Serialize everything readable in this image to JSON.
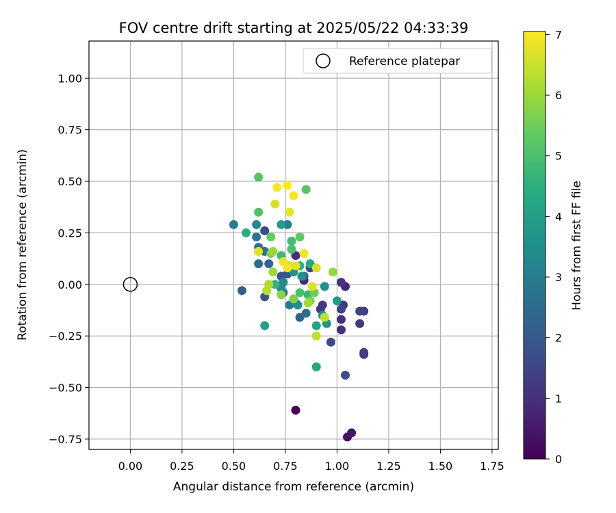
{
  "chart_data": {
    "type": "scatter",
    "title": "FOV centre drift starting at 2025/05/22 04:33:39",
    "xlabel": "Angular distance from reference (arcmin)",
    "ylabel": "Rotation from reference (arcmin)",
    "xlim": [
      -0.2,
      1.78
    ],
    "ylim": [
      -0.8,
      1.18
    ],
    "xticks": [
      "0.00",
      "0.25",
      "0.50",
      "0.75",
      "1.00",
      "1.25",
      "1.50",
      "1.75"
    ],
    "yticks": [
      "−0.75",
      "−0.50",
      "−0.25",
      "0.00",
      "0.25",
      "0.50",
      "0.75",
      "1.00"
    ],
    "xtick_values": [
      0,
      0.25,
      0.5,
      0.75,
      1.0,
      1.25,
      1.5,
      1.75
    ],
    "ytick_values": [
      -0.75,
      -0.5,
      -0.25,
      0,
      0.25,
      0.5,
      0.75,
      1.0
    ],
    "grid": true,
    "legend": {
      "placement": "top-right",
      "entries": [
        "Reference platepar"
      ]
    },
    "reference_point": {
      "x": 0.0,
      "y": 0.0
    },
    "colorbar": {
      "label": "Hours from first FF file",
      "ticks": [
        "0",
        "1",
        "2",
        "3",
        "4",
        "5",
        "6",
        "7"
      ],
      "tick_values": [
        0,
        1,
        2,
        3,
        4,
        5,
        6,
        7
      ],
      "range": [
        0,
        7.05
      ],
      "colormap": "viridis"
    },
    "points": [
      {
        "x": 0.8,
        "y": -0.61,
        "h": 0.0
      },
      {
        "x": 1.05,
        "y": -0.74,
        "h": 0.3
      },
      {
        "x": 1.07,
        "y": -0.72,
        "h": 0.4
      },
      {
        "x": 1.04,
        "y": -0.01,
        "h": 0.8
      },
      {
        "x": 0.84,
        "y": 0.02,
        "h": 0.8
      },
      {
        "x": 0.8,
        "y": 0.14,
        "h": 0.9
      },
      {
        "x": 1.02,
        "y": -0.17,
        "h": 1.0
      },
      {
        "x": 1.02,
        "y": -0.22,
        "h": 1.0
      },
      {
        "x": 1.03,
        "y": -0.1,
        "h": 1.1
      },
      {
        "x": 1.02,
        "y": 0.01,
        "h": 1.1
      },
      {
        "x": 0.92,
        "y": -0.12,
        "h": 1.2
      },
      {
        "x": 0.93,
        "y": -0.1,
        "h": 1.2
      },
      {
        "x": 1.11,
        "y": -0.19,
        "h": 1.2
      },
      {
        "x": 1.13,
        "y": -0.34,
        "h": 1.3
      },
      {
        "x": 1.13,
        "y": -0.33,
        "h": 1.3
      },
      {
        "x": 1.13,
        "y": -0.13,
        "h": 1.3
      },
      {
        "x": 1.11,
        "y": -0.13,
        "h": 1.4
      },
      {
        "x": 1.02,
        "y": -0.12,
        "h": 1.4
      },
      {
        "x": 0.97,
        "y": -0.28,
        "h": 1.5
      },
      {
        "x": 0.87,
        "y": 0.08,
        "h": 1.5
      },
      {
        "x": 0.65,
        "y": 0.26,
        "h": 1.6
      },
      {
        "x": 1.04,
        "y": -0.44,
        "h": 1.7
      },
      {
        "x": 0.73,
        "y": 0.04,
        "h": 1.8
      },
      {
        "x": 0.65,
        "y": -0.06,
        "h": 1.9
      },
      {
        "x": 0.76,
        "y": 0.05,
        "h": 1.9
      },
      {
        "x": 0.54,
        "y": -0.03,
        "h": 2.1
      },
      {
        "x": 0.84,
        "y": 0.04,
        "h": 2.1
      },
      {
        "x": 0.82,
        "y": -0.16,
        "h": 2.2
      },
      {
        "x": 0.67,
        "y": 0.1,
        "h": 2.3
      },
      {
        "x": 0.74,
        "y": -0.04,
        "h": 2.4
      },
      {
        "x": 0.85,
        "y": -0.14,
        "h": 2.5
      },
      {
        "x": 0.62,
        "y": 0.1,
        "h": 2.5
      },
      {
        "x": 0.65,
        "y": 0.16,
        "h": 2.6
      },
      {
        "x": 0.62,
        "y": 0.18,
        "h": 2.7
      },
      {
        "x": 0.61,
        "y": 0.23,
        "h": 2.8
      },
      {
        "x": 0.77,
        "y": -0.1,
        "h": 2.9
      },
      {
        "x": 0.5,
        "y": 0.29,
        "h": 3.0
      },
      {
        "x": 0.76,
        "y": 0.29,
        "h": 3.1
      },
      {
        "x": 0.74,
        "y": 0.01,
        "h": 3.3
      },
      {
        "x": 0.61,
        "y": 0.29,
        "h": 3.3
      },
      {
        "x": 0.73,
        "y": -0.02,
        "h": 3.4
      },
      {
        "x": 0.81,
        "y": -0.1,
        "h": 3.4
      },
      {
        "x": 0.8,
        "y": -0.09,
        "h": 3.5
      },
      {
        "x": 0.94,
        "y": -0.01,
        "h": 3.5
      },
      {
        "x": 0.83,
        "y": 0.04,
        "h": 3.6
      },
      {
        "x": 0.79,
        "y": 0.06,
        "h": 3.6
      },
      {
        "x": 0.95,
        "y": -0.19,
        "h": 3.7
      },
      {
        "x": 0.93,
        "y": -0.15,
        "h": 3.7
      },
      {
        "x": 1.0,
        "y": -0.08,
        "h": 3.8
      },
      {
        "x": 0.73,
        "y": 0.29,
        "h": 3.9
      },
      {
        "x": 0.65,
        "y": -0.2,
        "h": 4.0
      },
      {
        "x": 0.9,
        "y": -0.2,
        "h": 4.1
      },
      {
        "x": 0.9,
        "y": -0.4,
        "h": 4.2
      },
      {
        "x": 0.87,
        "y": 0.1,
        "h": 4.3
      },
      {
        "x": 0.56,
        "y": 0.25,
        "h": 4.4
      },
      {
        "x": 0.82,
        "y": 0.09,
        "h": 4.5
      },
      {
        "x": 0.7,
        "y": 0.0,
        "h": 4.6
      },
      {
        "x": 0.86,
        "y": -0.05,
        "h": 4.7
      },
      {
        "x": 0.73,
        "y": 0.14,
        "h": 4.8
      },
      {
        "x": 0.78,
        "y": 0.21,
        "h": 4.9
      },
      {
        "x": 0.78,
        "y": 0.17,
        "h": 5.0
      },
      {
        "x": 0.82,
        "y": -0.04,
        "h": 5.0
      },
      {
        "x": 0.62,
        "y": 0.35,
        "h": 5.1
      },
      {
        "x": 0.62,
        "y": 0.52,
        "h": 5.2
      },
      {
        "x": 0.85,
        "y": 0.46,
        "h": 5.2
      },
      {
        "x": 0.82,
        "y": 0.23,
        "h": 5.3
      },
      {
        "x": 0.68,
        "y": 0.23,
        "h": 5.4
      },
      {
        "x": 0.89,
        "y": -0.04,
        "h": 5.5
      },
      {
        "x": 0.87,
        "y": -0.08,
        "h": 5.6
      },
      {
        "x": 0.68,
        "y": 0.15,
        "h": 5.6
      },
      {
        "x": 0.79,
        "y": -0.07,
        "h": 5.7
      },
      {
        "x": 0.73,
        "y": -0.05,
        "h": 5.8
      },
      {
        "x": 0.98,
        "y": 0.06,
        "h": 5.9
      },
      {
        "x": 0.69,
        "y": 0.06,
        "h": 6.0
      },
      {
        "x": 0.69,
        "y": 0.16,
        "h": 6.0
      },
      {
        "x": 0.86,
        "y": -0.09,
        "h": 6.1
      },
      {
        "x": 0.67,
        "y": 0.0,
        "h": 6.2
      },
      {
        "x": 0.66,
        "y": -0.03,
        "h": 6.3
      },
      {
        "x": 0.94,
        "y": -0.16,
        "h": 6.4
      },
      {
        "x": 0.9,
        "y": -0.25,
        "h": 6.4
      },
      {
        "x": 0.77,
        "y": 0.09,
        "h": 6.5
      },
      {
        "x": 0.9,
        "y": 0.08,
        "h": 6.6
      },
      {
        "x": 0.7,
        "y": 0.39,
        "h": 6.6
      },
      {
        "x": 0.62,
        "y": 0.16,
        "h": 6.7
      },
      {
        "x": 0.88,
        "y": -0.01,
        "h": 6.7
      },
      {
        "x": 0.8,
        "y": 0.09,
        "h": 6.8
      },
      {
        "x": 0.77,
        "y": 0.35,
        "h": 6.8
      },
      {
        "x": 0.74,
        "y": 0.11,
        "h": 6.9
      },
      {
        "x": 0.84,
        "y": 0.15,
        "h": 6.9
      },
      {
        "x": 0.76,
        "y": 0.08,
        "h": 7.0
      },
      {
        "x": 0.79,
        "y": 0.43,
        "h": 7.0
      },
      {
        "x": 0.71,
        "y": 0.47,
        "h": 7.0
      },
      {
        "x": 0.76,
        "y": 0.48,
        "h": 7.05
      }
    ]
  }
}
